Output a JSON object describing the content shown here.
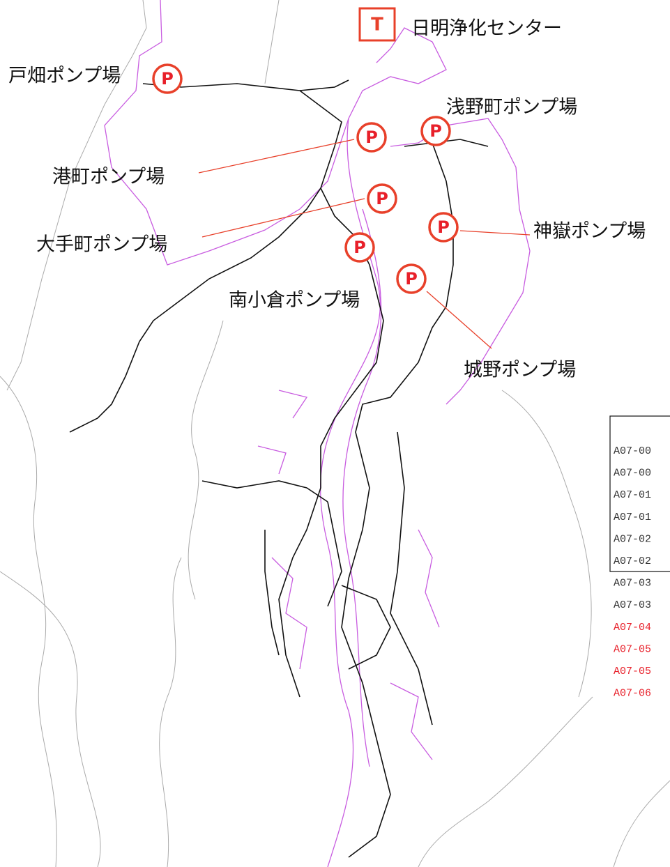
{
  "treatment_center": {
    "marker": "T",
    "name": "日明浄化センター"
  },
  "pump_stations": [
    {
      "marker": "P",
      "name": "戸畑ポンプ場"
    },
    {
      "marker": "P",
      "name": "港町ポンプ場"
    },
    {
      "marker": "P",
      "name": "大手町ポンプ場"
    },
    {
      "marker": "P",
      "name": "南小倉ポンプ場"
    },
    {
      "marker": "P",
      "name": "浅野町ポンプ場"
    },
    {
      "marker": "P",
      "name": "神嶽ポンプ場"
    },
    {
      "marker": "P",
      "name": "城野ポンプ場"
    }
  ],
  "legend": {
    "items": [
      {
        "label": "A07-00",
        "color": "#333333"
      },
      {
        "label": "A07-00",
        "color": "#333333"
      },
      {
        "label": "A07-01",
        "color": "#333333"
      },
      {
        "label": "A07-01",
        "color": "#333333"
      },
      {
        "label": "A07-02",
        "color": "#333333"
      },
      {
        "label": "A07-02",
        "color": "#333333"
      },
      {
        "label": "A07-03",
        "color": "#333333"
      },
      {
        "label": "A07-03",
        "color": "#333333"
      },
      {
        "label": "A07-04",
        "color": "#e8202a"
      },
      {
        "label": "A07-05",
        "color": "#e8202a"
      },
      {
        "label": "A07-05",
        "color": "#e8202a"
      },
      {
        "label": "A07-06",
        "color": "#e8202a"
      }
    ]
  }
}
